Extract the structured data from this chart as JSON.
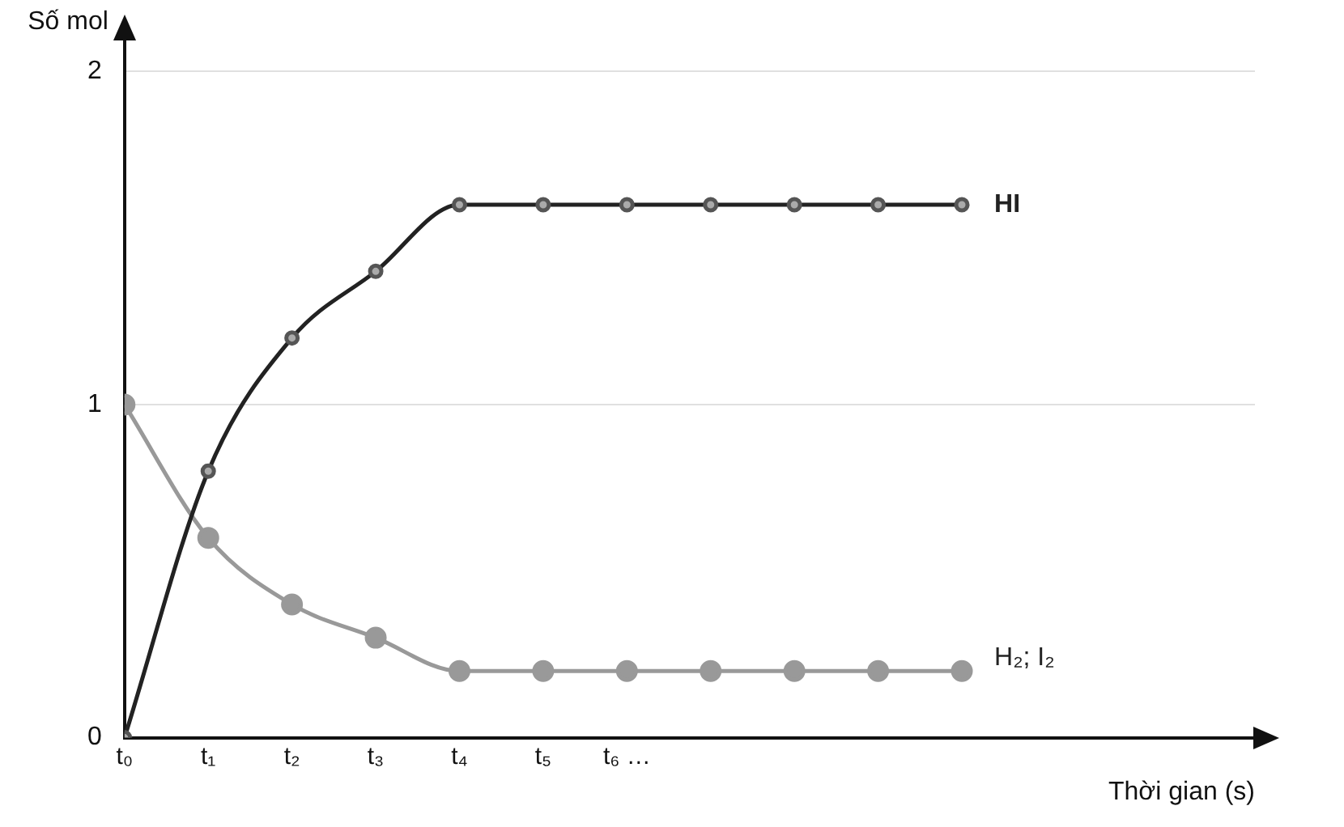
{
  "chart_data": {
    "type": "line",
    "xlabel": "Thời gian (s)",
    "ylabel": "Số mol",
    "categories": [
      "t₀",
      "t₁",
      "t₂",
      "t₃",
      "t₄",
      "t₅",
      "t₆ …",
      null,
      null,
      null,
      null
    ],
    "series": [
      {
        "name": "HI",
        "color": "#222222",
        "values": [
          0,
          0.8,
          1.2,
          1.4,
          1.6,
          1.6,
          1.6,
          1.6,
          1.6,
          1.6,
          1.6
        ]
      },
      {
        "name": "H₂; I₂",
        "color": "#999999",
        "values": [
          1,
          0.6,
          0.4,
          0.3,
          0.2,
          0.2,
          0.2,
          0.2,
          0.2,
          0.2,
          0.2
        ]
      }
    ],
    "ylim": [
      0,
      2.1
    ],
    "yticks": [
      0,
      1,
      2
    ],
    "grid": "y",
    "legend": false,
    "marker": "circle",
    "line_style": "solid"
  }
}
